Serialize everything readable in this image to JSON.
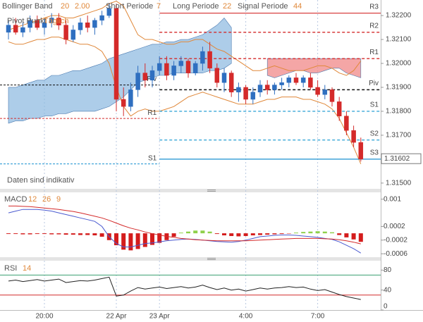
{
  "chart_data": {
    "type": "candlestick",
    "header": {
      "bollinger": "Bollinger Band",
      "bb_period": "20",
      "bb_dev": "2.00",
      "short": "Short Periode",
      "short_val": "7",
      "long": "Long Periode",
      "long_val": "22",
      "signal": "Signal Periode",
      "signal_val": "44",
      "pivot": "Pivot Punkt",
      "pivot_mode": "Täglich"
    },
    "note": "Daten sind indikativ",
    "categories": [
      null,
      null,
      null,
      null,
      null,
      "20:00",
      null,
      null,
      null,
      null,
      null,
      null,
      null,
      null,
      null,
      "22 Apr",
      null,
      null,
      null,
      null,
      null,
      "23 Apr",
      null,
      null,
      null,
      null,
      null,
      null,
      null,
      null,
      null,
      null,
      null,
      "4:00",
      null,
      null,
      null,
      null,
      null,
      null,
      null,
      null,
      null,
      "7:00",
      null,
      null,
      null,
      null,
      null,
      null
    ],
    "up_color": "#2f6fc0",
    "down_color": "#d42a2a",
    "open": [
      1.3213,
      1.3216,
      1.3213,
      1.3215,
      1.3218,
      1.3215,
      1.3217,
      1.3219,
      1.3216,
      1.321,
      1.3214,
      1.3217,
      1.3215,
      1.3218,
      1.322,
      1.3223,
      1.3185,
      1.3182,
      1.3189,
      1.3196,
      1.3193,
      1.3197,
      1.32,
      1.3195,
      1.3199,
      1.3201,
      1.3196,
      1.32,
      1.3205,
      1.3198,
      1.3192,
      1.3196,
      1.3188,
      1.319,
      1.3185,
      1.3188,
      1.3191,
      1.3189,
      1.3191,
      1.3192,
      1.3194,
      1.3192,
      1.3194,
      1.319,
      1.3187,
      1.3189,
      1.3184,
      1.3178,
      1.3172,
      1.3167
    ],
    "high": [
      1.3218,
      1.3219,
      1.3217,
      1.322,
      1.322,
      1.3219,
      1.3221,
      1.3221,
      1.3218,
      1.3216,
      1.3219,
      1.322,
      1.3219,
      1.3222,
      1.3225,
      1.3225,
      1.319,
      1.3192,
      1.3199,
      1.32,
      1.3199,
      1.3203,
      1.3203,
      1.3201,
      1.3203,
      1.3202,
      1.3201,
      1.3207,
      1.3209,
      1.32,
      1.3198,
      1.3197,
      1.3192,
      1.3191,
      1.319,
      1.3193,
      1.3193,
      1.3192,
      1.3194,
      1.3195,
      1.3196,
      1.3195,
      1.3196,
      1.3193,
      1.3191,
      1.319,
      1.3186,
      1.318,
      1.3174,
      1.3169
    ],
    "low": [
      1.321,
      1.3212,
      1.3211,
      1.3213,
      1.3214,
      1.3212,
      1.3215,
      1.3214,
      1.3208,
      1.3209,
      1.3212,
      1.3213,
      1.3212,
      1.3216,
      1.3219,
      1.318,
      1.3178,
      1.318,
      1.3186,
      1.319,
      1.319,
      1.3195,
      1.3193,
      1.3193,
      1.3196,
      1.3194,
      1.3195,
      1.3197,
      1.3196,
      1.319,
      1.3188,
      1.3186,
      1.3184,
      1.3183,
      1.3183,
      1.3186,
      1.3187,
      1.3187,
      1.3189,
      1.319,
      1.3191,
      1.319,
      1.3189,
      1.3186,
      1.3185,
      1.3182,
      1.3176,
      1.317,
      1.3165,
      1.3159
    ],
    "close": [
      1.3216,
      1.3213,
      1.3215,
      1.3218,
      1.3215,
      1.3217,
      1.3219,
      1.3216,
      1.321,
      1.3214,
      1.3217,
      1.3215,
      1.3218,
      1.322,
      1.3223,
      1.3185,
      1.3182,
      1.3189,
      1.3196,
      1.3193,
      1.3197,
      1.32,
      1.3195,
      1.3199,
      1.3201,
      1.3196,
      1.32,
      1.3205,
      1.3198,
      1.3192,
      1.3196,
      1.3188,
      1.319,
      1.3185,
      1.3188,
      1.3191,
      1.3189,
      1.3191,
      1.3192,
      1.3194,
      1.3192,
      1.3194,
      1.319,
      1.3187,
      1.3189,
      1.3184,
      1.3178,
      1.3172,
      1.3167,
      1.316
    ],
    "ylim": [
      1.31476,
      1.32265
    ],
    "yticks": [
      {
        "value": 1.322,
        "label": "1.32200"
      },
      {
        "value": 1.321,
        "label": "1.32100"
      },
      {
        "value": 1.32,
        "label": "1.32000"
      },
      {
        "value": 1.319,
        "label": "1.31900"
      },
      {
        "value": 1.318,
        "label": "1.31800"
      },
      {
        "value": 1.317,
        "label": "1.31700"
      },
      {
        "value": 1.315,
        "label": "1.31500"
      }
    ],
    "last_price": {
      "value": 1.31602,
      "label": "1.31602"
    },
    "bands": [
      {
        "color": "#e0883a",
        "values": [
          1.3214,
          1.3215,
          1.3216,
          1.3217,
          1.3218,
          1.3219,
          1.322,
          1.322,
          1.3219,
          1.3219,
          1.322,
          1.3221,
          1.3222,
          1.3223,
          1.3225,
          1.3226,
          1.3224,
          1.3218,
          1.3212,
          1.321,
          1.321,
          1.3209,
          1.3208,
          1.3208,
          1.3209,
          1.3209,
          1.321,
          1.321,
          1.3208,
          1.3206,
          1.3205,
          1.3203,
          1.3201,
          1.3199,
          1.3197,
          1.3197,
          1.3198,
          1.3199,
          1.3198,
          1.3197,
          1.3197,
          1.3197,
          1.3198,
          1.3199,
          1.3199,
          1.3198,
          1.3196,
          1.3195,
          1.3197,
          1.3201
        ]
      },
      {
        "color": "#e0883a",
        "values": [
          1.3209,
          1.3208,
          1.3208,
          1.3209,
          1.321,
          1.321,
          1.3211,
          1.3211,
          1.321,
          1.3209,
          1.3208,
          1.3208,
          1.3207,
          1.3205,
          1.32,
          1.319,
          1.3182,
          1.3178,
          1.318,
          1.3181,
          1.318,
          1.318,
          1.3181,
          1.3182,
          1.3184,
          1.3186,
          1.3187,
          1.3188,
          1.3187,
          1.3186,
          1.3185,
          1.3184,
          1.3183,
          1.3183,
          1.3183,
          1.3184,
          1.3185,
          1.3185,
          1.3186,
          1.3186,
          1.3186,
          1.3185,
          1.3185,
          1.3184,
          1.3183,
          1.3181,
          1.3177,
          1.3171,
          1.3165,
          1.3158
        ]
      }
    ],
    "clouds": [
      {
        "color": "#8ab8e0",
        "top": [
          1.319,
          1.319,
          1.3191,
          1.3192,
          1.3193,
          1.3193,
          1.3195,
          1.3195,
          1.3196,
          1.3197,
          1.3197,
          1.3198,
          1.3199,
          1.32,
          1.3202,
          1.3203,
          1.3204,
          1.3205,
          1.3206,
          1.3207,
          1.3208,
          1.3208,
          1.3209,
          1.3209,
          1.321,
          1.321,
          1.3211,
          1.3212,
          1.3214,
          1.3216,
          1.3219,
          1.3215,
          null,
          null,
          null,
          null,
          null,
          null,
          null,
          null,
          null,
          null,
          null,
          null,
          null,
          null,
          null,
          null,
          null,
          null
        ],
        "bottom": [
          1.3175,
          1.3176,
          1.3176,
          1.3177,
          1.3177,
          1.3178,
          1.3178,
          1.3179,
          1.3179,
          1.318,
          1.318,
          1.318,
          1.318,
          1.3181,
          1.3182,
          1.3184,
          1.3186,
          1.3189,
          1.3192,
          1.3193,
          1.3194,
          1.3195,
          1.3195,
          1.3196,
          1.3196,
          1.3196,
          1.3196,
          1.3196,
          1.3197,
          1.3197,
          1.3198,
          1.32,
          null,
          null,
          null,
          null,
          null,
          null,
          null,
          null,
          null,
          null,
          null,
          null,
          null,
          null,
          null,
          null,
          null,
          null
        ]
      },
      {
        "color": "#f08080",
        "top": [
          null,
          null,
          null,
          null,
          null,
          null,
          null,
          null,
          null,
          null,
          null,
          null,
          null,
          null,
          null,
          null,
          null,
          null,
          null,
          null,
          null,
          null,
          null,
          null,
          null,
          null,
          null,
          null,
          null,
          null,
          null,
          null,
          null,
          null,
          null,
          null,
          1.3202,
          1.3202,
          1.3202,
          1.3202,
          1.3202,
          1.3202,
          1.3202,
          1.3202,
          1.3202,
          1.3202,
          1.3202,
          1.3202,
          1.3202,
          1.3202
        ],
        "bottom": [
          null,
          null,
          null,
          null,
          null,
          null,
          null,
          null,
          null,
          null,
          null,
          null,
          null,
          null,
          null,
          null,
          null,
          null,
          null,
          null,
          null,
          null,
          null,
          null,
          null,
          null,
          null,
          null,
          null,
          null,
          null,
          null,
          null,
          null,
          null,
          null,
          1.3195,
          1.3194,
          1.3195,
          1.3196,
          1.3197,
          1.3197,
          1.3196,
          1.3196,
          1.3197,
          1.3198,
          1.3198,
          1.3196,
          1.3195,
          1.3194
        ]
      }
    ],
    "pivots": [
      {
        "label": "R3",
        "value": 1.3221,
        "color": "#d42a2a",
        "dashed": false
      },
      {
        "label": "R2",
        "value": 1.3213,
        "color": "#d42a2a",
        "dashed": true
      },
      {
        "label": "R1",
        "value": 1.3202,
        "color": "#d42a2a",
        "dashed": true
      },
      {
        "label": "Piv",
        "value": 1.3189,
        "color": "#111111",
        "dashed": true
      },
      {
        "label": "S1",
        "value": 1.318,
        "color": "#3aa8d8",
        "dashed": true
      },
      {
        "label": "S2",
        "value": 1.3168,
        "color": "#3aa8d8",
        "dashed": true
      },
      {
        "label": "S3",
        "value": 1.316,
        "color": "#1a90d0",
        "dashed": false
      }
    ],
    "prev_pivots": [
      {
        "label": "R1",
        "value": 1.3177,
        "color": "#d42a2a"
      },
      {
        "label": "Piv",
        "value": 1.3191,
        "color": "#111111"
      },
      {
        "label": "S1",
        "value": 1.3158,
        "color": "#1a90d0"
      }
    ],
    "macd": {
      "title": "MACD",
      "params": [
        "12",
        "26",
        "9"
      ],
      "ylim": [
        -0.0007,
        0.0012
      ],
      "yticks": [
        0.001,
        0.0002,
        -0.0002,
        -0.0006
      ],
      "up_color": "#8fd04a",
      "down_color": "#d41c1c",
      "histogram": [
        -2e-05,
        -2e-05,
        -3e-05,
        -3e-05,
        -2e-05,
        -2e-05,
        -3e-05,
        -3e-05,
        -4e-05,
        -4e-05,
        -5e-05,
        -5e-05,
        -6e-05,
        -0.0001,
        -0.0002,
        -0.00035,
        -0.00048,
        -0.0005,
        -0.00046,
        -0.0004,
        -0.00034,
        -0.00028,
        -0.0002,
        -0.0001,
        2e-05,
        5e-05,
        8e-05,
        8e-05,
        5e-05,
        -2e-05,
        -6e-05,
        -8e-05,
        -9e-05,
        -8e-05,
        -6e-05,
        -5e-05,
        -4e-05,
        -3e-05,
        -2e-05,
        -1e-05,
        2e-05,
        4e-05,
        5e-05,
        6e-05,
        5e-05,
        3e-05,
        -5e-05,
        -0.00012,
        -0.00018,
        -0.00025
      ],
      "lines": [
        {
          "color": "#4a5ad0",
          "values": [
            0.0006,
            0.00065,
            0.0007,
            0.0007,
            0.0007,
            0.00068,
            0.00065,
            0.0006,
            0.00055,
            0.0005,
            0.00045,
            0.0004,
            0.00035,
            0.0002,
            -0.0001,
            -0.0003,
            -0.0004,
            -0.0004,
            -0.00035,
            -0.0003,
            -0.00028,
            -0.00025,
            -0.00022,
            -0.0002,
            -0.00018,
            -0.00017,
            -0.00018,
            -0.0002,
            -0.00022,
            -0.00024,
            -0.00025,
            -0.00026,
            -0.00024,
            -0.0002,
            -0.00015,
            -0.0001,
            -8e-05,
            -6e-05,
            -5e-05,
            -5e-05,
            -6e-05,
            -8e-05,
            -0.0001,
            -0.00012,
            -0.00015,
            -0.00018,
            -0.00025,
            -0.00035,
            -0.00045,
            -0.00058
          ]
        },
        {
          "color": "#d42a2a",
          "values": [
            0.0008,
            0.0008,
            0.00079,
            0.00078,
            0.00076,
            0.00074,
            0.00072,
            0.0007,
            0.00067,
            0.00064,
            0.0006,
            0.00055,
            0.0005,
            0.00045,
            0.00038,
            0.0003,
            0.00022,
            0.00015,
            0.0001,
            4e-05,
            -1e-05,
            -5e-05,
            -9e-05,
            -0.00012,
            -0.00015,
            -0.00017,
            -0.00019,
            -0.0002,
            -0.00021,
            -0.00022,
            -0.00022,
            -0.00022,
            -0.00022,
            -0.00022,
            -0.00021,
            -0.0002,
            -0.00019,
            -0.00018,
            -0.00017,
            -0.00016,
            -0.00015,
            -0.00015,
            -0.00015,
            -0.00015,
            -0.00016,
            -0.00017,
            -0.00019,
            -0.00022,
            -0.00026,
            -0.00031
          ]
        }
      ]
    },
    "rsi": {
      "title": "RSI",
      "param": "14",
      "ylim": [
        0,
        96
      ],
      "yticks": [
        80,
        40,
        0
      ],
      "color": "#222222",
      "levels": [
        {
          "value": 70,
          "color": "#3aa070"
        },
        {
          "value": 30,
          "color": "#d42a2a"
        }
      ],
      "values": [
        58,
        60,
        57,
        59,
        61,
        58,
        60,
        62,
        55,
        57,
        59,
        58,
        60,
        63,
        66,
        28,
        30,
        38,
        45,
        42,
        44,
        46,
        43,
        45,
        47,
        44,
        46,
        50,
        45,
        41,
        44,
        40,
        42,
        38,
        41,
        44,
        42,
        44,
        45,
        47,
        45,
        46,
        42,
        39,
        41,
        36,
        31,
        27,
        24,
        21
      ]
    }
  }
}
